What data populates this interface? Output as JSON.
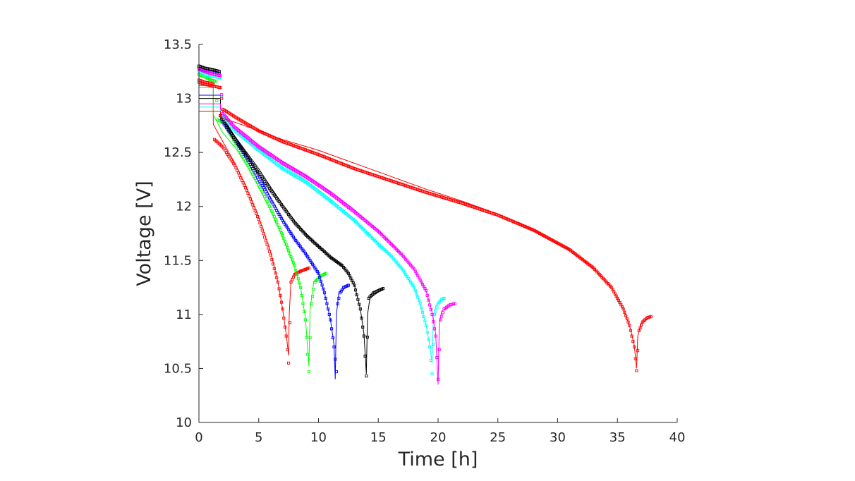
{
  "chart_data": {
    "type": "line",
    "title": "",
    "xlabel": "Time [h]",
    "ylabel": "Voltage [V]",
    "xlim": [
      0,
      40
    ],
    "ylim": [
      10,
      13.5
    ],
    "xticks": [
      0,
      5,
      10,
      15,
      20,
      25,
      30,
      35,
      40
    ],
    "yticks": [
      10,
      10.5,
      11,
      11.5,
      12,
      12.5,
      13,
      13.5
    ],
    "xtick_labels": [
      "0",
      "5",
      "10",
      "15",
      "20",
      "25",
      "30",
      "35",
      "40"
    ],
    "ytick_labels": [
      "10",
      "10.5",
      "11",
      "11.5",
      "12",
      "12.5",
      "13",
      "13.5"
    ],
    "grid": false,
    "legend": "none",
    "series": [
      {
        "color": "#ff0000",
        "measured": [
          [
            0,
            13.17
          ],
          [
            0.5,
            13.15
          ],
          [
            1,
            13.14
          ],
          [
            1.2,
            13.13
          ],
          [
            1.3,
            12.62
          ],
          [
            2,
            12.55
          ],
          [
            3,
            12.38
          ],
          [
            4,
            12.15
          ],
          [
            5,
            11.88
          ],
          [
            6,
            11.55
          ],
          [
            6.6,
            11.3
          ],
          [
            7,
            11.05
          ],
          [
            7.3,
            10.8
          ],
          [
            7.5,
            10.55
          ],
          [
            7.7,
            11.3
          ],
          [
            8,
            11.37
          ],
          [
            8.5,
            11.4
          ],
          [
            9.2,
            11.43
          ]
        ],
        "model": [
          [
            0,
            13.12
          ],
          [
            1.2,
            13.12
          ],
          [
            1.2,
            12.76
          ],
          [
            2,
            12.6
          ],
          [
            3,
            12.4
          ],
          [
            4,
            12.17
          ],
          [
            5,
            11.9
          ],
          [
            6,
            11.58
          ],
          [
            6.6,
            11.3
          ],
          [
            7,
            11.05
          ],
          [
            7.3,
            10.82
          ],
          [
            7.5,
            10.62
          ],
          [
            7.55,
            11.0
          ],
          [
            7.7,
            11.32
          ],
          [
            8,
            11.38
          ],
          [
            9.2,
            11.43
          ]
        ]
      },
      {
        "color": "#00ff00",
        "measured": [
          [
            0,
            13.22
          ],
          [
            0.5,
            13.2
          ],
          [
            1,
            13.17
          ],
          [
            1.4,
            13.16
          ],
          [
            1.6,
            12.8
          ],
          [
            2,
            12.78
          ],
          [
            3,
            12.6
          ],
          [
            4,
            12.4
          ],
          [
            5,
            12.2
          ],
          [
            6,
            11.98
          ],
          [
            7,
            11.73
          ],
          [
            8,
            11.45
          ],
          [
            8.5,
            11.25
          ],
          [
            8.9,
            10.95
          ],
          [
            9.2,
            10.47
          ],
          [
            9.4,
            11.1
          ],
          [
            9.7,
            11.3
          ],
          [
            10.1,
            11.35
          ],
          [
            10.6,
            11.38
          ]
        ],
        "model": [
          [
            0,
            13.1
          ],
          [
            1.2,
            13.1
          ],
          [
            1.2,
            12.85
          ],
          [
            2,
            12.68
          ],
          [
            3,
            12.55
          ],
          [
            4,
            12.38
          ],
          [
            5,
            12.18
          ],
          [
            6,
            11.96
          ],
          [
            7,
            11.72
          ],
          [
            8,
            11.44
          ],
          [
            8.5,
            11.25
          ],
          [
            8.9,
            10.97
          ],
          [
            9.2,
            10.52
          ],
          [
            9.3,
            11.05
          ],
          [
            9.6,
            11.3
          ],
          [
            10.6,
            11.38
          ]
        ]
      },
      {
        "color": "#0000ff",
        "measured": [
          [
            0,
            13.28
          ],
          [
            0.5,
            13.26
          ],
          [
            1,
            13.25
          ],
          [
            1.7,
            13.23
          ],
          [
            1.8,
            12.84
          ],
          [
            2,
            12.78
          ],
          [
            3,
            12.62
          ],
          [
            4,
            12.45
          ],
          [
            5,
            12.25
          ],
          [
            6,
            12.06
          ],
          [
            7,
            11.87
          ],
          [
            8,
            11.7
          ],
          [
            9,
            11.55
          ],
          [
            10,
            11.38
          ],
          [
            10.5,
            11.2
          ],
          [
            11,
            10.95
          ],
          [
            11.3,
            10.7
          ],
          [
            11.5,
            10.47
          ],
          [
            11.6,
            11.1
          ],
          [
            11.8,
            11.2
          ],
          [
            12.1,
            11.25
          ],
          [
            12.5,
            11.27
          ]
        ],
        "model": [
          [
            0,
            13.03
          ],
          [
            1.8,
            13.03
          ],
          [
            1.8,
            12.85
          ],
          [
            2,
            12.8
          ],
          [
            3,
            12.65
          ],
          [
            4,
            12.48
          ],
          [
            5,
            12.3
          ],
          [
            6,
            12.08
          ],
          [
            7,
            11.88
          ],
          [
            8,
            11.7
          ],
          [
            9,
            11.55
          ],
          [
            10,
            11.38
          ],
          [
            10.5,
            11.2
          ],
          [
            11,
            10.95
          ],
          [
            11.3,
            10.72
          ],
          [
            11.4,
            10.4
          ],
          [
            11.5,
            11.0
          ],
          [
            11.7,
            11.2
          ],
          [
            12.5,
            11.27
          ]
        ]
      },
      {
        "color": "#000000",
        "measured": [
          [
            0,
            13.3
          ],
          [
            0.5,
            13.28
          ],
          [
            1,
            13.27
          ],
          [
            1.7,
            13.25
          ],
          [
            1.8,
            12.84
          ],
          [
            3,
            12.62
          ],
          [
            4,
            12.47
          ],
          [
            5,
            12.31
          ],
          [
            6,
            12.15
          ],
          [
            7,
            12.0
          ],
          [
            8,
            11.85
          ],
          [
            9,
            11.73
          ],
          [
            10,
            11.63
          ],
          [
            11,
            11.53
          ],
          [
            12,
            11.45
          ],
          [
            12.5,
            11.38
          ],
          [
            13,
            11.27
          ],
          [
            13.5,
            11.05
          ],
          [
            13.8,
            10.8
          ],
          [
            14,
            10.43
          ],
          [
            14.2,
            11.15
          ],
          [
            14.6,
            11.2
          ],
          [
            15,
            11.22
          ],
          [
            15.4,
            11.24
          ]
        ],
        "model": [
          [
            0,
            13.0
          ],
          [
            1.8,
            13.0
          ],
          [
            1.8,
            12.86
          ],
          [
            3,
            12.65
          ],
          [
            4,
            12.5
          ],
          [
            5,
            12.35
          ],
          [
            6,
            12.18
          ],
          [
            7,
            12.02
          ],
          [
            8,
            11.87
          ],
          [
            9,
            11.74
          ],
          [
            10,
            11.63
          ],
          [
            11,
            11.53
          ],
          [
            12,
            11.45
          ],
          [
            12.5,
            11.38
          ],
          [
            13,
            11.27
          ],
          [
            13.5,
            11.05
          ],
          [
            13.8,
            10.82
          ],
          [
            14,
            10.45
          ],
          [
            14.1,
            11.0
          ],
          [
            14.3,
            11.15
          ],
          [
            15.4,
            11.24
          ]
        ]
      },
      {
        "color": "#00ffff",
        "measured": [
          [
            0,
            13.25
          ],
          [
            0.5,
            13.22
          ],
          [
            1,
            13.21
          ],
          [
            1.8,
            13.19
          ],
          [
            2,
            12.84
          ],
          [
            3,
            12.7
          ],
          [
            5,
            12.52
          ],
          [
            7,
            12.35
          ],
          [
            9,
            12.22
          ],
          [
            11,
            12.05
          ],
          [
            13,
            11.87
          ],
          [
            15,
            11.65
          ],
          [
            16,
            11.55
          ],
          [
            17,
            11.42
          ],
          [
            18,
            11.25
          ],
          [
            18.5,
            11.1
          ],
          [
            19,
            10.9
          ],
          [
            19.3,
            10.7
          ],
          [
            19.5,
            10.45
          ],
          [
            19.7,
            11.0
          ],
          [
            20,
            11.1
          ],
          [
            20.3,
            11.14
          ],
          [
            20.5,
            11.15
          ]
        ],
        "model": [
          [
            0,
            12.92
          ],
          [
            1.8,
            12.92
          ],
          [
            1.8,
            12.88
          ],
          [
            3,
            12.72
          ],
          [
            5,
            12.55
          ],
          [
            7,
            12.38
          ],
          [
            9,
            12.24
          ],
          [
            11,
            12.07
          ],
          [
            13,
            11.88
          ],
          [
            15,
            11.66
          ],
          [
            16,
            11.55
          ],
          [
            17,
            11.42
          ],
          [
            18,
            11.25
          ],
          [
            18.5,
            11.1
          ],
          [
            19,
            10.9
          ],
          [
            19.3,
            10.72
          ],
          [
            19.5,
            10.55
          ],
          [
            19.6,
            10.95
          ],
          [
            19.8,
            11.08
          ],
          [
            20.5,
            11.15
          ]
        ]
      },
      {
        "color": "#ff00ff",
        "measured": [
          [
            0,
            13.27
          ],
          [
            0.5,
            13.25
          ],
          [
            1,
            13.23
          ],
          [
            1.8,
            13.21
          ],
          [
            2,
            12.86
          ],
          [
            3,
            12.73
          ],
          [
            5,
            12.55
          ],
          [
            7,
            12.4
          ],
          [
            9,
            12.27
          ],
          [
            11,
            12.12
          ],
          [
            13,
            11.95
          ],
          [
            15,
            11.77
          ],
          [
            16,
            11.66
          ],
          [
            17,
            11.55
          ],
          [
            18,
            11.42
          ],
          [
            19,
            11.22
          ],
          [
            19.5,
            11.0
          ],
          [
            19.8,
            10.8
          ],
          [
            20,
            10.4
          ],
          [
            20.2,
            10.95
          ],
          [
            20.5,
            11.05
          ],
          [
            21,
            11.09
          ],
          [
            21.4,
            11.1
          ]
        ],
        "model": [
          [
            0,
            12.95
          ],
          [
            1.8,
            12.95
          ],
          [
            1.8,
            12.9
          ],
          [
            3,
            12.75
          ],
          [
            5,
            12.57
          ],
          [
            7,
            12.42
          ],
          [
            9,
            12.29
          ],
          [
            11,
            12.14
          ],
          [
            13,
            11.97
          ],
          [
            15,
            11.78
          ],
          [
            16,
            11.67
          ],
          [
            17,
            11.55
          ],
          [
            18,
            11.42
          ],
          [
            19,
            11.22
          ],
          [
            19.5,
            11.02
          ],
          [
            19.8,
            10.82
          ],
          [
            20,
            10.35
          ],
          [
            20.1,
            10.9
          ],
          [
            20.3,
            11.03
          ],
          [
            21.4,
            11.1
          ]
        ]
      },
      {
        "color": "#ff0000",
        "measured": [
          [
            0,
            13.15
          ],
          [
            0.5,
            13.13
          ],
          [
            1,
            13.12
          ],
          [
            1.8,
            13.1
          ],
          [
            2,
            12.9
          ],
          [
            3,
            12.83
          ],
          [
            5,
            12.7
          ],
          [
            7,
            12.6
          ],
          [
            10,
            12.48
          ],
          [
            13,
            12.35
          ],
          [
            16,
            12.24
          ],
          [
            19,
            12.13
          ],
          [
            22,
            12.03
          ],
          [
            25,
            11.92
          ],
          [
            28,
            11.78
          ],
          [
            31,
            11.6
          ],
          [
            33,
            11.43
          ],
          [
            34.5,
            11.25
          ],
          [
            35.5,
            11.05
          ],
          [
            36,
            10.9
          ],
          [
            36.4,
            10.7
          ],
          [
            36.6,
            10.48
          ],
          [
            36.8,
            10.85
          ],
          [
            37.1,
            10.93
          ],
          [
            37.5,
            10.97
          ],
          [
            37.8,
            10.98
          ]
        ],
        "model": [
          [
            0,
            12.88
          ],
          [
            1.8,
            12.88
          ],
          [
            1.8,
            12.82
          ],
          [
            3,
            12.78
          ],
          [
            5,
            12.7
          ],
          [
            7,
            12.62
          ],
          [
            10,
            12.52
          ],
          [
            13,
            12.4
          ],
          [
            16,
            12.28
          ],
          [
            19,
            12.16
          ],
          [
            22,
            12.05
          ],
          [
            25,
            11.93
          ],
          [
            28,
            11.78
          ],
          [
            31,
            11.6
          ],
          [
            33,
            11.43
          ],
          [
            34.5,
            11.25
          ],
          [
            35.5,
            11.05
          ],
          [
            36,
            10.9
          ],
          [
            36.4,
            10.72
          ],
          [
            36.6,
            10.5
          ],
          [
            36.7,
            10.8
          ],
          [
            37,
            10.92
          ],
          [
            37.8,
            10.98
          ]
        ]
      }
    ]
  }
}
